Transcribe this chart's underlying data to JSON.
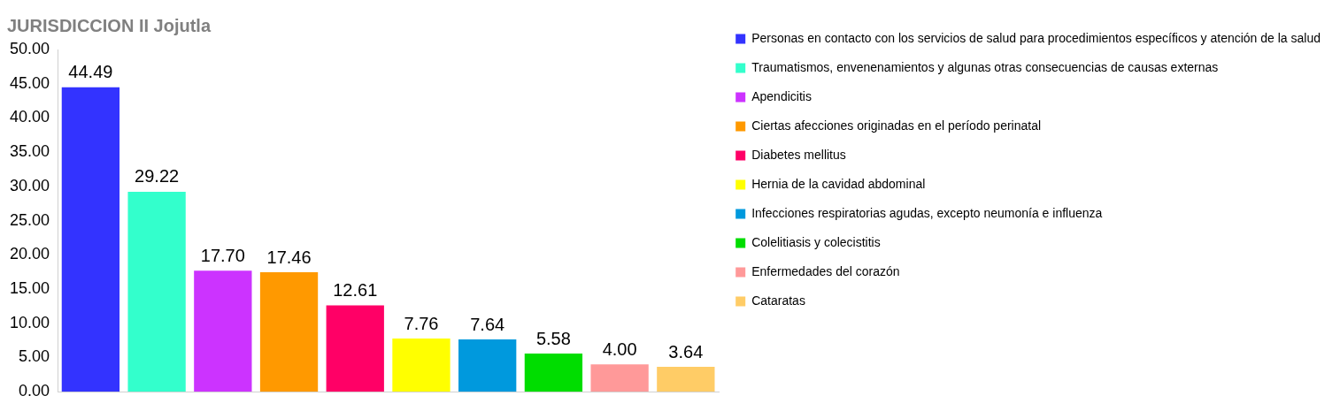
{
  "chart_data": {
    "type": "bar",
    "title": "JURISDICCION II Jojutla",
    "categories": [
      null,
      null,
      null,
      null,
      null,
      null,
      null,
      null,
      null,
      null
    ],
    "series": [
      {
        "name": "Personas en contacto con los servicios de salud para procedimientos específicos y atención de la salud",
        "color": "#3333ff",
        "values": [
          44.49,
          null,
          null,
          null,
          null,
          null,
          null,
          null,
          null,
          null
        ],
        "value_labels": [
          "44.49",
          null,
          null,
          null,
          null,
          null,
          null,
          null,
          null,
          null
        ]
      },
      {
        "name": "Traumatismos, envenenamientos y algunas otras consecuencias de causas externas",
        "color": "#33ffcc",
        "values": [
          null,
          29.22,
          null,
          null,
          null,
          null,
          null,
          null,
          null,
          null
        ],
        "value_labels": [
          null,
          "29.22",
          null,
          null,
          null,
          null,
          null,
          null,
          null,
          null
        ]
      },
      {
        "name": "Apendicitis",
        "color": "#cc33ff",
        "values": [
          null,
          null,
          17.7,
          null,
          null,
          null,
          null,
          null,
          null,
          null
        ],
        "value_labels": [
          null,
          null,
          "17.70",
          null,
          null,
          null,
          null,
          null,
          null,
          null
        ]
      },
      {
        "name": "Ciertas afecciones originadas en el período perinatal",
        "color": "#ff9900",
        "values": [
          null,
          null,
          null,
          17.46,
          null,
          null,
          null,
          null,
          null,
          null
        ],
        "value_labels": [
          null,
          null,
          null,
          "17.46",
          null,
          null,
          null,
          null,
          null,
          null
        ]
      },
      {
        "name": "Diabetes mellitus",
        "color": "#ff0066",
        "values": [
          null,
          null,
          null,
          null,
          12.61,
          null,
          null,
          null,
          null,
          null
        ],
        "value_labels": [
          null,
          null,
          null,
          null,
          "12.61",
          null,
          null,
          null,
          null,
          null
        ]
      },
      {
        "name": "Hernia de la cavidad abdominal",
        "color": "#ffff00",
        "values": [
          null,
          null,
          null,
          null,
          null,
          7.76,
          null,
          null,
          null,
          null
        ],
        "value_labels": [
          null,
          null,
          null,
          null,
          null,
          "7.76",
          null,
          null,
          null,
          null
        ]
      },
      {
        "name": "Infecciones respiratorias agudas, excepto neumonía e influenza",
        "color": "#0099dd",
        "values": [
          null,
          null,
          null,
          null,
          null,
          null,
          7.64,
          null,
          null,
          null
        ],
        "value_labels": [
          null,
          null,
          null,
          null,
          null,
          null,
          "7.64",
          null,
          null,
          null
        ]
      },
      {
        "name": "Colelitiasis y colecistitis",
        "color": "#00dd00",
        "values": [
          null,
          null,
          null,
          null,
          null,
          null,
          null,
          5.58,
          null,
          null
        ],
        "value_labels": [
          null,
          null,
          null,
          null,
          null,
          null,
          null,
          "5.58",
          null,
          null
        ]
      },
      {
        "name": "Enfermedades del corazón",
        "color": "#ff9999",
        "values": [
          null,
          null,
          null,
          null,
          null,
          null,
          null,
          null,
          4.0,
          null
        ],
        "value_labels": [
          null,
          null,
          null,
          null,
          null,
          null,
          null,
          null,
          "4.00",
          null
        ]
      },
      {
        "name": "Cataratas",
        "color": "#ffcc66",
        "values": [
          null,
          null,
          null,
          null,
          null,
          null,
          null,
          null,
          null,
          3.64
        ],
        "value_labels": [
          null,
          null,
          null,
          null,
          null,
          null,
          null,
          null,
          null,
          "3.64"
        ]
      }
    ],
    "ylim": [
      0,
      50
    ],
    "yticks": [
      {
        "value": 0,
        "label": "0.00"
      },
      {
        "value": 5,
        "label": "5.00"
      },
      {
        "value": 10,
        "label": "10.00"
      },
      {
        "value": 15,
        "label": "15.00"
      },
      {
        "value": 20,
        "label": "20.00"
      },
      {
        "value": 25,
        "label": "25.00"
      },
      {
        "value": 30,
        "label": "30.00"
      },
      {
        "value": 35,
        "label": "35.00"
      },
      {
        "value": 40,
        "label": "40.00"
      },
      {
        "value": 45,
        "label": "45.00"
      },
      {
        "value": 50,
        "label": "50.00"
      }
    ],
    "grid": false,
    "legend": "right",
    "tick_labels": "y"
  }
}
